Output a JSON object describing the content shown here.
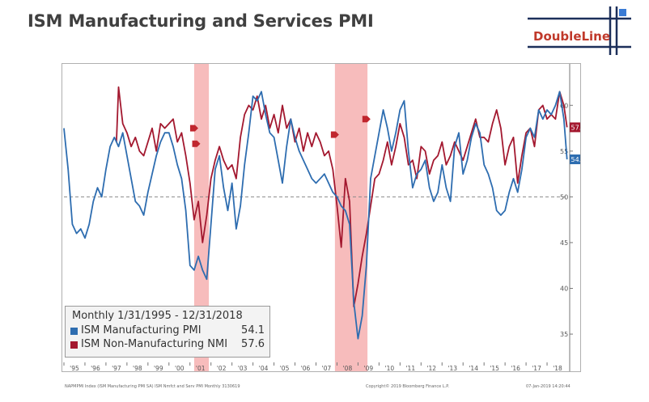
{
  "title": "ISM Manufacturing and Services PMI",
  "logo": {
    "text": "DoubleLine",
    "accent": "#c0392b",
    "lines": "#1c2f5a",
    "square": "#3a7bd5"
  },
  "legend": {
    "period": "Monthly 1/31/1995 - 12/31/2018",
    "items": [
      {
        "name": "ISM Manufacturing PMI",
        "value": "54.1",
        "color": "#2e6db0"
      },
      {
        "name": "ISM Non-Manufacturing NMI",
        "value": "57.6",
        "color": "#a3182f"
      }
    ]
  },
  "footer": {
    "left": "NAPMPMI Index (ISM Manufacturing PMI SA) ISM Nmfct and Serv PMI  Monthly 3130619",
    "center": "Copyright© 2019 Bloomberg Finance L.P.",
    "right": "07-Jan-2019 14:20:44"
  },
  "chart_data": {
    "type": "line",
    "title": "ISM Manufacturing and Services PMI",
    "xlim": [
      1995.0,
      2019.0
    ],
    "ylim": [
      32,
      64
    ],
    "y_ticks": [
      35,
      40,
      45,
      50,
      55,
      60
    ],
    "y_tick_labels": [
      "35",
      "40",
      "45",
      "50",
      "55",
      "60"
    ],
    "x_tick_labels": [
      "'95",
      "'96",
      "'97",
      "'98",
      "'99",
      "'00",
      "'01",
      "'02",
      "'03",
      "'04",
      "'05",
      "'06",
      "'07",
      "'08",
      "'09",
      "'10",
      "'11",
      "'12",
      "'13",
      "'14",
      "'15",
      "'16",
      "'17",
      "'18"
    ],
    "reference_line": 50,
    "recessions": [
      [
        2001.2,
        2001.9
      ],
      [
        2007.9,
        2009.45
      ]
    ],
    "grid": false,
    "legend_position": "bottom-left",
    "series": [
      {
        "name": "ISM Manufacturing PMI",
        "color": "#2e6db0",
        "last_label": "54.1",
        "x": [
          1995.0,
          1995.2,
          1995.4,
          1995.6,
          1995.8,
          1996.0,
          1996.2,
          1996.4,
          1996.6,
          1996.8,
          1997.0,
          1997.2,
          1997.4,
          1997.6,
          1997.8,
          1998.0,
          1998.2,
          1998.4,
          1998.6,
          1998.8,
          1999.0,
          1999.2,
          1999.4,
          1999.6,
          1999.8,
          2000.0,
          2000.2,
          2000.4,
          2000.6,
          2000.8,
          2001.0,
          2001.2,
          2001.4,
          2001.6,
          2001.8,
          2002.0,
          2002.2,
          2002.4,
          2002.6,
          2002.8,
          2003.0,
          2003.2,
          2003.4,
          2003.6,
          2003.8,
          2004.0,
          2004.2,
          2004.4,
          2004.6,
          2004.8,
          2005.0,
          2005.2,
          2005.4,
          2005.6,
          2005.8,
          2006.0,
          2006.2,
          2006.4,
          2006.6,
          2006.8,
          2007.0,
          2007.2,
          2007.4,
          2007.6,
          2007.8,
          2008.0,
          2008.2,
          2008.4,
          2008.6,
          2008.8,
          2009.0,
          2009.2,
          2009.4,
          2009.6,
          2009.8,
          2010.0,
          2010.2,
          2010.4,
          2010.6,
          2010.8,
          2011.0,
          2011.2,
          2011.4,
          2011.6,
          2011.8,
          2012.0,
          2012.2,
          2012.4,
          2012.6,
          2012.8,
          2013.0,
          2013.2,
          2013.4,
          2013.6,
          2013.8,
          2014.0,
          2014.2,
          2014.4,
          2014.6,
          2014.8,
          2015.0,
          2015.2,
          2015.4,
          2015.6,
          2015.8,
          2016.0,
          2016.2,
          2016.4,
          2016.6,
          2016.8,
          2017.0,
          2017.2,
          2017.4,
          2017.6,
          2017.8,
          2018.0,
          2018.2,
          2018.4,
          2018.6,
          2018.8,
          2018.95
        ],
        "y": [
          57.5,
          53.0,
          47.0,
          46.0,
          46.5,
          45.5,
          47.0,
          49.5,
          51.0,
          50.0,
          53.0,
          55.5,
          56.5,
          55.5,
          57.0,
          54.5,
          52.0,
          49.5,
          49.0,
          48.0,
          50.5,
          52.5,
          54.5,
          56.0,
          57.0,
          57.0,
          55.5,
          53.5,
          52.0,
          48.5,
          42.5,
          42.0,
          43.5,
          42.0,
          41.0,
          47.0,
          53.0,
          54.5,
          51.0,
          48.5,
          51.5,
          46.5,
          49.0,
          53.5,
          57.0,
          61.0,
          60.5,
          61.5,
          59.0,
          57.0,
          56.5,
          54.0,
          51.5,
          55.5,
          58.5,
          56.5,
          55.0,
          54.0,
          53.0,
          52.0,
          51.5,
          52.0,
          52.5,
          51.5,
          50.5,
          50.0,
          49.0,
          48.5,
          47.0,
          38.5,
          34.5,
          37.0,
          42.5,
          52.0,
          54.5,
          57.0,
          59.5,
          57.5,
          55.0,
          57.0,
          59.5,
          60.5,
          55.0,
          51.0,
          52.5,
          53.0,
          54.0,
          51.0,
          49.5,
          50.5,
          53.5,
          51.0,
          49.5,
          55.5,
          57.0,
          52.5,
          54.0,
          56.5,
          58.0,
          57.0,
          53.5,
          52.5,
          51.0,
          48.5,
          48.0,
          48.5,
          50.5,
          52.0,
          50.5,
          53.0,
          56.5,
          57.5,
          56.5,
          59.5,
          58.5,
          59.5,
          59.0,
          60.0,
          61.5,
          58.5,
          54.1
        ]
      },
      {
        "name": "ISM Non-Manufacturing NMI",
        "color": "#a3182f",
        "last_label": "57.6",
        "x": [
          1997.5,
          1997.6,
          1997.8,
          1998.0,
          1998.2,
          1998.4,
          1998.6,
          1998.8,
          1999.0,
          1999.2,
          1999.4,
          1999.6,
          1999.8,
          2000.0,
          2000.2,
          2000.4,
          2000.6,
          2000.8,
          2001.0,
          2001.2,
          2001.4,
          2001.6,
          2001.8,
          2002.0,
          2002.2,
          2002.4,
          2002.6,
          2002.8,
          2003.0,
          2003.2,
          2003.4,
          2003.6,
          2003.8,
          2004.0,
          2004.2,
          2004.4,
          2004.6,
          2004.8,
          2005.0,
          2005.2,
          2005.4,
          2005.6,
          2005.8,
          2006.0,
          2006.2,
          2006.4,
          2006.6,
          2006.8,
          2007.0,
          2007.2,
          2007.4,
          2007.6,
          2007.8,
          2008.0,
          2008.2,
          2008.4,
          2008.6,
          2008.8,
          2009.0,
          2009.2,
          2009.4,
          2009.6,
          2009.8,
          2010.0,
          2010.2,
          2010.4,
          2010.6,
          2010.8,
          2011.0,
          2011.2,
          2011.4,
          2011.6,
          2011.8,
          2012.0,
          2012.2,
          2012.4,
          2012.6,
          2012.8,
          2013.0,
          2013.2,
          2013.4,
          2013.6,
          2013.8,
          2014.0,
          2014.2,
          2014.4,
          2014.6,
          2014.8,
          2015.0,
          2015.2,
          2015.4,
          2015.6,
          2015.8,
          2016.0,
          2016.2,
          2016.4,
          2016.6,
          2016.8,
          2017.0,
          2017.2,
          2017.4,
          2017.6,
          2017.8,
          2018.0,
          2018.2,
          2018.4,
          2018.6,
          2018.8,
          2018.95
        ],
        "y": [
          56.0,
          62.0,
          58.0,
          57.0,
          55.5,
          56.5,
          55.0,
          54.5,
          56.0,
          57.5,
          55.0,
          58.0,
          57.5,
          58.0,
          58.5,
          56.0,
          57.0,
          54.5,
          51.5,
          47.5,
          49.5,
          45.0,
          48.0,
          52.0,
          54.0,
          55.5,
          54.0,
          53.0,
          53.5,
          52.0,
          56.5,
          59.0,
          60.0,
          59.5,
          61.0,
          58.5,
          60.0,
          57.5,
          59.0,
          57.0,
          60.0,
          57.5,
          58.5,
          56.0,
          57.5,
          55.0,
          57.0,
          55.5,
          57.0,
          56.0,
          54.5,
          55.0,
          53.0,
          49.0,
          44.5,
          52.0,
          49.5,
          38.0,
          40.5,
          43.5,
          46.0,
          49.0,
          52.0,
          52.5,
          54.0,
          56.0,
          53.5,
          55.5,
          58.0,
          56.5,
          53.5,
          54.0,
          52.0,
          55.5,
          55.0,
          52.5,
          54.0,
          54.5,
          56.0,
          53.5,
          54.5,
          56.0,
          55.0,
          54.0,
          55.5,
          57.0,
          58.5,
          56.5,
          56.5,
          56.0,
          58.0,
          59.5,
          57.5,
          53.5,
          55.5,
          56.5,
          51.5,
          54.5,
          57.0,
          57.5,
          55.5,
          59.5,
          60.0,
          58.5,
          59.0,
          58.5,
          61.5,
          60.0,
          57.6
        ]
      }
    ]
  }
}
